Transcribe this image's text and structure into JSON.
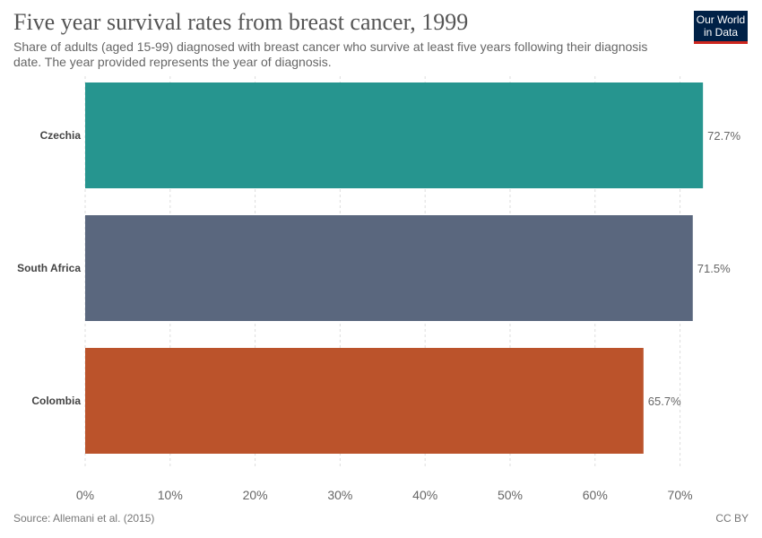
{
  "header": {
    "title": "Five year survival rates from breast cancer, 1999",
    "subtitle": "Share of adults (aged 15-99) diagnosed with breast cancer who survive at least five years following their diagnosis date. The year provided represents the year of diagnosis.",
    "logo_line1": "Our World",
    "logo_line2": "in Data"
  },
  "footer": {
    "source": "Source: Allemani et al. (2015)",
    "license": "CC BY"
  },
  "chart_data": {
    "type": "bar",
    "orientation": "horizontal",
    "title": "Five year survival rates from breast cancer, 1999",
    "categories": [
      "Czechia",
      "South Africa",
      "Colombia"
    ],
    "values": [
      72.7,
      71.5,
      65.7
    ],
    "value_labels": [
      "72.7%",
      "71.5%",
      "65.7%"
    ],
    "colors": [
      "#26958f",
      "#5a677e",
      "#bb532b"
    ],
    "xlim": [
      0,
      73
    ],
    "ticks": [
      0,
      10,
      20,
      30,
      40,
      50,
      60,
      70
    ],
    "tick_labels": [
      "0%",
      "10%",
      "20%",
      "30%",
      "40%",
      "50%",
      "60%",
      "70%"
    ],
    "grid": true
  }
}
